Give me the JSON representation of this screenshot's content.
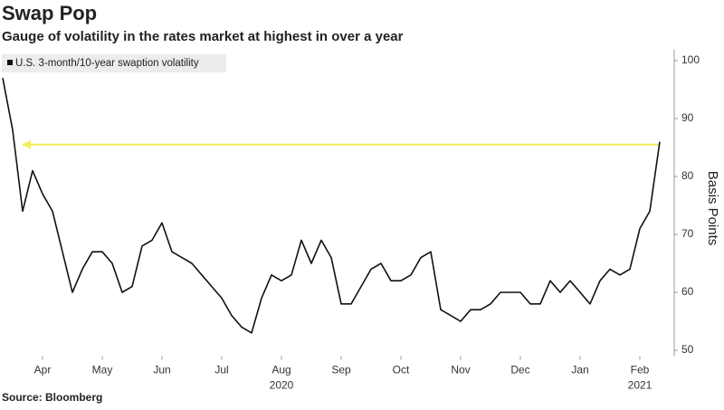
{
  "chart_data": {
    "type": "line",
    "title": "Swap Pop",
    "subtitle": "Gauge of volatility in the rates market at highest in over a year",
    "y_label": "Basis Points",
    "source": "Source: Bloomberg",
    "categories": [
      null,
      null,
      null,
      null,
      "Apr",
      null,
      null,
      null,
      null,
      null,
      "May",
      null,
      null,
      null,
      null,
      null,
      "Jun",
      null,
      null,
      null,
      null,
      null,
      "Jul",
      null,
      null,
      null,
      null,
      null,
      "Aug",
      null,
      null,
      null,
      null,
      null,
      "Sep",
      null,
      null,
      null,
      null,
      null,
      "Oct",
      null,
      null,
      null,
      null,
      null,
      "Nov",
      null,
      null,
      null,
      null,
      null,
      "Dec",
      null,
      null,
      null,
      null,
      null,
      "Jan",
      null,
      null,
      null,
      null,
      null,
      "Feb",
      null,
      null
    ],
    "year_labels": [
      {
        "label": "2020",
        "category": "Aug"
      },
      {
        "label": "2021",
        "category": "Feb"
      }
    ],
    "series": [
      {
        "name": "U.S. 3-month/10-year swaption volatility",
        "color": "#111111",
        "values": [
          97,
          88,
          74,
          81,
          77,
          74,
          67,
          60,
          64,
          67,
          67,
          65,
          60,
          61,
          68,
          69,
          72,
          67,
          66,
          65,
          63,
          61,
          59,
          56,
          54,
          53,
          59,
          63,
          62,
          63,
          69,
          65,
          69,
          66,
          58,
          58,
          61,
          64,
          65,
          62,
          62,
          63,
          66,
          67,
          57,
          56,
          55,
          57,
          57,
          58,
          60,
          60,
          60,
          58,
          58,
          62,
          60,
          62,
          60,
          58,
          62,
          64,
          63,
          64,
          71,
          74,
          86
        ]
      }
    ],
    "reference_line": {
      "value": 85.5,
      "color": "#f2ee5a"
    },
    "ylim": [
      49,
      101
    ],
    "yticks": [
      50,
      60,
      70,
      80,
      90,
      100
    ],
    "y_axis_side": "right"
  }
}
